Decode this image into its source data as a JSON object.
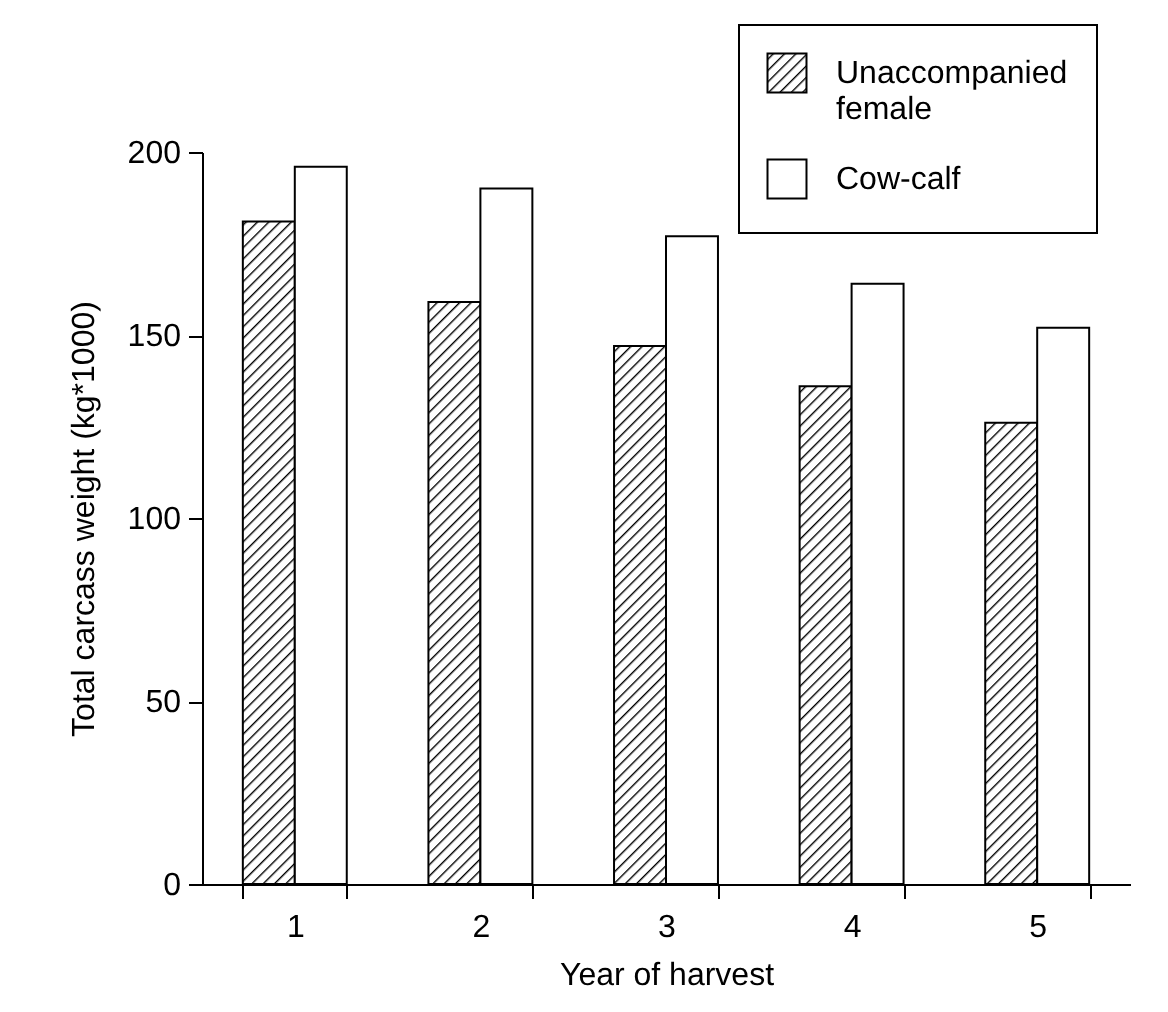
{
  "chart_data": {
    "type": "bar",
    "xlabel": "Year of harvest",
    "ylabel": "Total carcass weight (kg*1000)",
    "categories": [
      "1",
      "2",
      "3",
      "4",
      "5"
    ],
    "series": [
      {
        "name": "Unaccompanied female",
        "color": "#000000",
        "values": [
          181,
          159,
          147,
          136,
          126
        ]
      },
      {
        "name": "Cow-calf",
        "color": "#ffffff",
        "values": [
          196,
          190,
          177,
          164,
          152
        ]
      }
    ],
    "ylim": [
      0,
      200
    ],
    "yticks": [
      0,
      50,
      100,
      150,
      200
    ],
    "grid": false,
    "legend": "top right"
  }
}
